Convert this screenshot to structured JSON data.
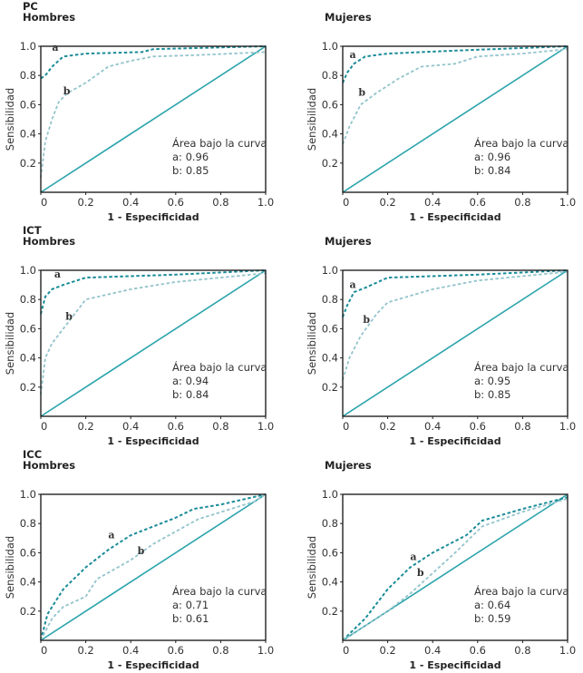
{
  "colors": {
    "curve_a": "#1a8c98",
    "curve_b": "#93c4cc",
    "diagonal": "#2aa3ab",
    "axis": "#222222"
  },
  "chart_data": [
    {
      "type": "line",
      "group": "PC",
      "subtitle": "Hombres",
      "xlabel": "1 - Especificidad",
      "ylabel": "Sensibilidad",
      "xlim": [
        0,
        1
      ],
      "ylim": [
        0,
        1
      ],
      "xticks": [
        "0",
        "0.2",
        "0.4",
        "0.6",
        "0.8",
        "1.0"
      ],
      "yticks": [
        "0.2",
        "0.4",
        "0.6",
        "0.8",
        "1.0"
      ],
      "area_title": "Área bajo la curva",
      "area_a": "a: 0.96",
      "area_b": "b: 0.85",
      "series": [
        {
          "name": "a",
          "points": [
            [
              0,
              0.78
            ],
            [
              0.02,
              0.8
            ],
            [
              0.05,
              0.86
            ],
            [
              0.1,
              0.93
            ],
            [
              0.2,
              0.95
            ],
            [
              0.45,
              0.96
            ],
            [
              0.5,
              0.98
            ],
            [
              1,
              1
            ]
          ]
        },
        {
          "name": "b",
          "points": [
            [
              0,
              0.1
            ],
            [
              0.02,
              0.35
            ],
            [
              0.05,
              0.5
            ],
            [
              0.08,
              0.62
            ],
            [
              0.12,
              0.68
            ],
            [
              0.2,
              0.75
            ],
            [
              0.3,
              0.86
            ],
            [
              0.4,
              0.9
            ],
            [
              0.5,
              0.93
            ],
            [
              0.7,
              0.94
            ],
            [
              1,
              0.96
            ]
          ]
        }
      ]
    },
    {
      "type": "line",
      "group": "",
      "subtitle": "Mujeres",
      "xlabel": "1 - Especificidad",
      "ylabel": "Sensibilidad",
      "xlim": [
        0,
        1
      ],
      "ylim": [
        0,
        1
      ],
      "xticks": [
        "0",
        "0.2",
        "0.4",
        "0.6",
        "0.8",
        "1.0"
      ],
      "yticks": [
        "0.2",
        "0.4",
        "0.6",
        "0.8",
        "1.0"
      ],
      "area_title": "Área bajo la curva",
      "area_a": "a: 0.96",
      "area_b": "b: 0.84",
      "series": [
        {
          "name": "a",
          "points": [
            [
              0,
              0.75
            ],
            [
              0.02,
              0.82
            ],
            [
              0.05,
              0.88
            ],
            [
              0.1,
              0.93
            ],
            [
              0.2,
              0.95
            ],
            [
              0.5,
              0.97
            ],
            [
              1,
              1
            ]
          ]
        },
        {
          "name": "b",
          "points": [
            [
              0,
              0.33
            ],
            [
              0.03,
              0.45
            ],
            [
              0.08,
              0.6
            ],
            [
              0.15,
              0.68
            ],
            [
              0.25,
              0.78
            ],
            [
              0.35,
              0.86
            ],
            [
              0.5,
              0.88
            ],
            [
              0.6,
              0.93
            ],
            [
              0.8,
              0.95
            ],
            [
              1,
              0.98
            ]
          ]
        }
      ]
    },
    {
      "type": "line",
      "group": "ICT",
      "subtitle": "Hombres",
      "xlabel": "1 - Especificidad",
      "ylabel": "Sensibilidad",
      "xlim": [
        0,
        1
      ],
      "ylim": [
        0,
        1
      ],
      "xticks": [
        "0",
        "0.2",
        "0.4",
        "0.6",
        "0.8",
        "1.0"
      ],
      "yticks": [
        "0.2",
        "0.4",
        "0.6",
        "0.8",
        "1.0"
      ],
      "area_title": "Área bajo la curva",
      "area_a": "a: 0.94",
      "area_b": "b: 0.84",
      "series": [
        {
          "name": "a",
          "points": [
            [
              0,
              0.7
            ],
            [
              0.02,
              0.82
            ],
            [
              0.05,
              0.87
            ],
            [
              0.1,
              0.9
            ],
            [
              0.2,
              0.95
            ],
            [
              0.6,
              0.97
            ],
            [
              1,
              1
            ]
          ]
        },
        {
          "name": "b",
          "points": [
            [
              0,
              0.15
            ],
            [
              0.02,
              0.4
            ],
            [
              0.05,
              0.5
            ],
            [
              0.1,
              0.6
            ],
            [
              0.15,
              0.7
            ],
            [
              0.2,
              0.8
            ],
            [
              0.4,
              0.87
            ],
            [
              0.6,
              0.92
            ],
            [
              1,
              0.98
            ]
          ]
        }
      ]
    },
    {
      "type": "line",
      "group": "",
      "subtitle": "Mujeres",
      "xlabel": "1 - Especificidad",
      "ylabel": "Sensibilidad",
      "xlim": [
        0,
        1
      ],
      "ylim": [
        0,
        1
      ],
      "xticks": [
        "0",
        "0.2",
        "0.4",
        "0.6",
        "0.8",
        "1.0"
      ],
      "yticks": [
        "0.2",
        "0.4",
        "0.6",
        "0.8",
        "1.0"
      ],
      "area_title": "Área bajo la curva",
      "area_a": "a: 0.95",
      "area_b": "b: 0.85",
      "series": [
        {
          "name": "a",
          "points": [
            [
              0,
              0.68
            ],
            [
              0.02,
              0.76
            ],
            [
              0.05,
              0.85
            ],
            [
              0.1,
              0.88
            ],
            [
              0.2,
              0.95
            ],
            [
              0.6,
              0.97
            ],
            [
              1,
              1
            ]
          ]
        },
        {
          "name": "b",
          "points": [
            [
              0,
              0.25
            ],
            [
              0.03,
              0.4
            ],
            [
              0.08,
              0.55
            ],
            [
              0.15,
              0.7
            ],
            [
              0.2,
              0.78
            ],
            [
              0.4,
              0.87
            ],
            [
              0.6,
              0.93
            ],
            [
              1,
              0.99
            ]
          ]
        }
      ]
    },
    {
      "type": "line",
      "group": "ICC",
      "subtitle": "Hombres",
      "xlabel": "1 - Especificidad",
      "ylabel": "Sensibilidad",
      "xlim": [
        0,
        1
      ],
      "ylim": [
        0,
        1
      ],
      "xticks": [
        "0",
        "0.2",
        "0.4",
        "0.6",
        "0.8",
        "1.0"
      ],
      "yticks": [
        "0.2",
        "0.4",
        "0.6",
        "0.8",
        "1.0"
      ],
      "area_title": "Área bajo la curva",
      "area_a": "a: 0.71",
      "area_b": "b: 0.61",
      "series": [
        {
          "name": "a",
          "points": [
            [
              0,
              0
            ],
            [
              0.03,
              0.18
            ],
            [
              0.1,
              0.35
            ],
            [
              0.2,
              0.5
            ],
            [
              0.3,
              0.62
            ],
            [
              0.4,
              0.72
            ],
            [
              0.6,
              0.84
            ],
            [
              0.68,
              0.9
            ],
            [
              0.8,
              0.93
            ],
            [
              1,
              1
            ]
          ]
        },
        {
          "name": "b",
          "points": [
            [
              0,
              0
            ],
            [
              0.05,
              0.15
            ],
            [
              0.1,
              0.23
            ],
            [
              0.2,
              0.3
            ],
            [
              0.25,
              0.42
            ],
            [
              0.4,
              0.55
            ],
            [
              0.5,
              0.66
            ],
            [
              0.7,
              0.83
            ],
            [
              0.95,
              0.95
            ],
            [
              1,
              1
            ]
          ]
        }
      ]
    },
    {
      "type": "line",
      "group": "",
      "subtitle": "Mujeres",
      "xlabel": "1 - Especificidad",
      "ylabel": "Sensibilidad",
      "xlim": [
        0,
        1
      ],
      "ylim": [
        0,
        1
      ],
      "xticks": [
        "0",
        "0.2",
        "0.4",
        "0.6",
        "0.8",
        "1.0"
      ],
      "yticks": [
        "0.2",
        "0.4",
        "0.6",
        "0.8",
        "1.0"
      ],
      "area_title": "Área bajo la curva",
      "area_a": "a: 0.64",
      "area_b": "b: 0.59",
      "series": [
        {
          "name": "a",
          "points": [
            [
              0,
              0
            ],
            [
              0.1,
              0.15
            ],
            [
              0.2,
              0.35
            ],
            [
              0.3,
              0.5
            ],
            [
              0.4,
              0.6
            ],
            [
              0.55,
              0.72
            ],
            [
              0.62,
              0.82
            ],
            [
              0.8,
              0.9
            ],
            [
              1,
              0.98
            ]
          ]
        },
        {
          "name": "b",
          "points": [
            [
              0,
              0
            ],
            [
              0.1,
              0.1
            ],
            [
              0.2,
              0.2
            ],
            [
              0.3,
              0.32
            ],
            [
              0.4,
              0.46
            ],
            [
              0.5,
              0.6
            ],
            [
              0.62,
              0.78
            ],
            [
              0.8,
              0.88
            ],
            [
              1,
              0.97
            ]
          ]
        }
      ]
    }
  ]
}
